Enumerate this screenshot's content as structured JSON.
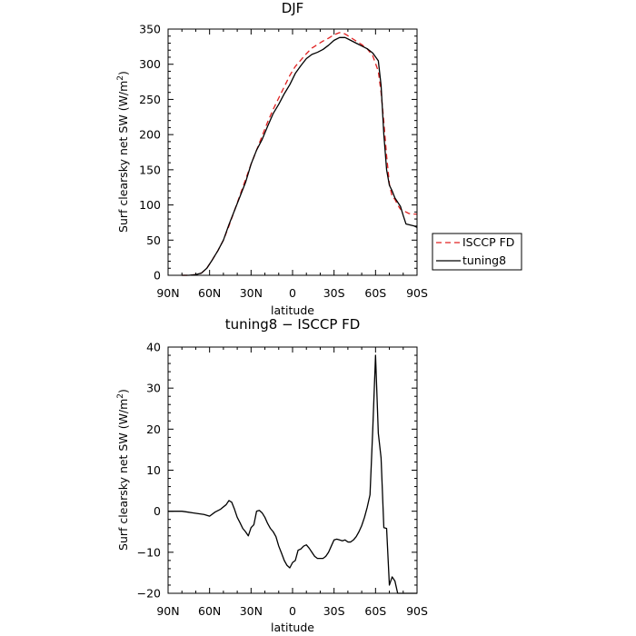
{
  "chart_data": [
    {
      "type": "line",
      "title": "DJF",
      "xlabel": "latitude",
      "ylabel": "Surf clearsky net SW (W/m",
      "ylabel_sup": "2",
      "ylabel_end": ")",
      "xlim": [
        -90,
        90
      ],
      "ylim": [
        0,
        350
      ],
      "xticks": [
        -90,
        -60,
        -30,
        0,
        30,
        60,
        90
      ],
      "xtick_labels": [
        "90N",
        "60N",
        "30N",
        "0",
        "30S",
        "60S",
        "90S"
      ],
      "yticks": [
        0,
        50,
        100,
        150,
        200,
        250,
        300,
        350
      ],
      "ytick_labels": [
        "0",
        "50",
        "100",
        "150",
        "200",
        "250",
        "300",
        "350"
      ],
      "grid": false,
      "legend": "outside-right",
      "series": [
        {
          "name": "ISCCP FD",
          "color": "#e02020",
          "dash": "dashed",
          "x": [
            -80,
            -75,
            -70,
            -66,
            -62,
            -58,
            -54,
            -50,
            -46,
            -42,
            -38,
            -34,
            -30,
            -26,
            -22,
            -18,
            -14,
            -10,
            -6,
            -2,
            2,
            6,
            10,
            14,
            18,
            22,
            26,
            30,
            34,
            38,
            42,
            46,
            50,
            54,
            58,
            62,
            64,
            66,
            68,
            70,
            72,
            74,
            76,
            78,
            80,
            82,
            84,
            86,
            88,
            90
          ],
          "y": [
            0,
            0,
            1,
            3,
            10,
            22,
            35,
            50,
            70,
            92,
            114,
            136,
            158,
            178,
            198,
            218,
            236,
            252,
            268,
            284,
            297,
            306,
            315,
            323,
            328,
            333,
            337,
            342,
            345,
            343,
            338,
            333,
            328,
            322,
            312,
            290,
            260,
            218,
            170,
            130,
            112,
            108,
            100,
            94,
            92,
            90,
            88,
            87,
            87,
            87
          ]
        },
        {
          "name": "tuning8",
          "color": "#000000",
          "dash": "solid",
          "x": [
            -80,
            -75,
            -70,
            -66,
            -62,
            -58,
            -54,
            -50,
            -46,
            -42,
            -38,
            -34,
            -30,
            -26,
            -22,
            -18,
            -14,
            -10,
            -6,
            -2,
            2,
            6,
            10,
            14,
            18,
            22,
            26,
            30,
            34,
            38,
            42,
            46,
            50,
            54,
            58,
            62,
            64,
            66,
            68,
            70,
            72,
            74,
            76,
            78,
            80,
            82,
            84,
            86,
            88,
            90
          ],
          "y": [
            0,
            0,
            1,
            3,
            10,
            22,
            35,
            50,
            72,
            92,
            112,
            132,
            158,
            178,
            193,
            212,
            230,
            243,
            258,
            271,
            287,
            298,
            308,
            314,
            317,
            321,
            327,
            334,
            338,
            338,
            334,
            330,
            326,
            322,
            316,
            305,
            270,
            200,
            150,
            128,
            120,
            110,
            104,
            98,
            85,
            73,
            72,
            71,
            70,
            68
          ]
        }
      ]
    },
    {
      "type": "line",
      "title": "tuning8 − ISCCP FD",
      "xlabel": "latitude",
      "ylabel": "Surf clearsky net SW (W/m",
      "ylabel_sup": "2",
      "ylabel_end": ")",
      "xlim": [
        -90,
        90
      ],
      "ylim": [
        -20,
        40
      ],
      "xticks": [
        -90,
        -60,
        -30,
        0,
        30,
        60,
        90
      ],
      "xtick_labels": [
        "90N",
        "60N",
        "30N",
        "0",
        "30S",
        "60S",
        "90S"
      ],
      "yticks": [
        -20,
        -10,
        0,
        10,
        20,
        30,
        40
      ],
      "ytick_labels": [
        "−20",
        "−10",
        "0",
        "10",
        "20",
        "30",
        "40"
      ],
      "grid": false,
      "series": [
        {
          "color": "#000000",
          "dash": "solid",
          "x": [
            -90,
            -84,
            -80,
            -76,
            -72,
            -68,
            -64,
            -60,
            -56,
            -52,
            -48,
            -46,
            -44,
            -42,
            -40,
            -38,
            -36,
            -34,
            -32,
            -30,
            -28,
            -26,
            -24,
            -22,
            -20,
            -18,
            -16,
            -14,
            -12,
            -10,
            -8,
            -6,
            -4,
            -2,
            0,
            2,
            4,
            6,
            8,
            10,
            12,
            14,
            16,
            18,
            20,
            22,
            24,
            26,
            28,
            30,
            32,
            34,
            36,
            38,
            40,
            42,
            44,
            46,
            48,
            50,
            52,
            54,
            56,
            58,
            60,
            62,
            64,
            66,
            68,
            70,
            72,
            74,
            76,
            78,
            80,
            82,
            84,
            86,
            88,
            90
          ],
          "y": [
            0,
            0,
            0,
            -0.2,
            -0.4,
            -0.6,
            -0.8,
            -1.2,
            -0.2,
            0.5,
            1.6,
            2.6,
            2.2,
            0.5,
            -1.5,
            -2.8,
            -4.2,
            -5.0,
            -6.0,
            -4.0,
            -3.3,
            0,
            0.2,
            -0.4,
            -1.5,
            -3.0,
            -4.2,
            -5.0,
            -6.2,
            -8.5,
            -10.2,
            -12.0,
            -13.2,
            -13.8,
            -12.5,
            -12.0,
            -9.5,
            -9.2,
            -8.5,
            -8.2,
            -9.0,
            -10.0,
            -11.0,
            -11.5,
            -11.5,
            -11.5,
            -11.0,
            -10.0,
            -8.5,
            -7.0,
            -6.8,
            -7.0,
            -7.2,
            -7.0,
            -7.5,
            -7.5,
            -7.0,
            -6.2,
            -5.0,
            -3.5,
            -1.5,
            1.0,
            4.0,
            20.0,
            38.0,
            19.0,
            13.0,
            -4.0,
            -4.2,
            -18.0,
            -16.0,
            -17.0,
            -20.0,
            -20.0,
            -20.0,
            -20.0,
            -20.0,
            -20.0,
            -20.0,
            -20.0
          ]
        }
      ]
    }
  ]
}
